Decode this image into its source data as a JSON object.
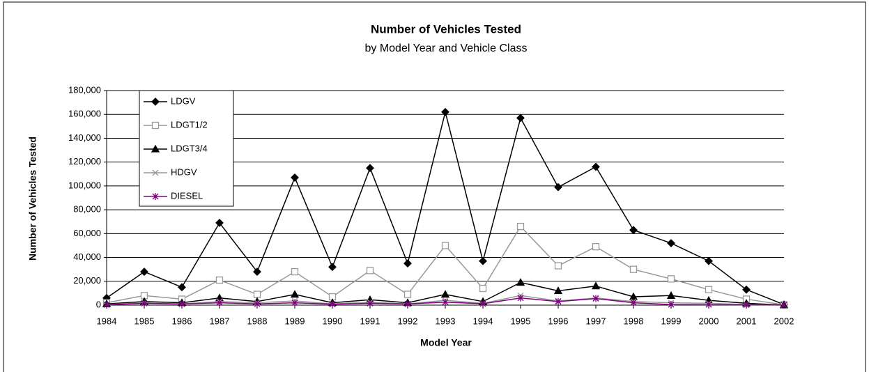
{
  "chart_data": {
    "type": "line",
    "title": "Number of Vehicles Tested",
    "subtitle": "by Model Year and Vehicle Class",
    "x_label": "Model Year",
    "y_label": "Number of Vehicles Tested",
    "categories": [
      "1984",
      "1985",
      "1986",
      "1987",
      "1988",
      "1989",
      "1990",
      "1991",
      "1992",
      "1993",
      "1994",
      "1995",
      "1996",
      "1997",
      "1998",
      "1999",
      "2000",
      "2001",
      "2002"
    ],
    "series": [
      {
        "name": "LDGV",
        "color": "#000000",
        "marker": "diamond",
        "values": [
          6000,
          28000,
          15000,
          69000,
          28000,
          107000,
          32000,
          115000,
          35000,
          162000,
          37000,
          157000,
          99000,
          116000,
          63000,
          52000,
          37000,
          13000,
          500
        ]
      },
      {
        "name": "LDGT1/2",
        "color": "#999999",
        "marker": "square",
        "values": [
          2000,
          8000,
          5000,
          21000,
          9000,
          28000,
          7000,
          29000,
          9000,
          50000,
          14000,
          66000,
          33000,
          49000,
          30000,
          22000,
          13000,
          5000,
          300
        ]
      },
      {
        "name": "LDGT3/4",
        "color": "#000000",
        "marker": "triangle",
        "values": [
          1000,
          3000,
          2000,
          6000,
          3000,
          9000,
          2000,
          4500,
          2000,
          9000,
          3000,
          19000,
          12000,
          16000,
          7000,
          8000,
          4000,
          1500,
          100
        ]
      },
      {
        "name": "HDGV",
        "color": "#999999",
        "marker": "x",
        "values": [
          500,
          2000,
          1000,
          3000,
          2000,
          3500,
          1000,
          2500,
          1000,
          4000,
          1500,
          8000,
          3500,
          6000,
          3000,
          2000,
          1500,
          500,
          100
        ]
      },
      {
        "name": "DIESEL",
        "color": "#800080",
        "marker": "star",
        "values": [
          300,
          1500,
          1000,
          2000,
          1000,
          2000,
          800,
          1500,
          1000,
          2500,
          1200,
          6000,
          3000,
          5500,
          2000,
          500,
          400,
          200,
          100
        ]
      }
    ],
    "ylim": [
      0,
      180000
    ],
    "yticks": [
      0,
      {
        "value": 20000,
        "label": "20,000"
      },
      {
        "value": 40000,
        "label": "40,000"
      },
      {
        "value": 60000,
        "label": "60,000"
      },
      {
        "value": 80000,
        "label": "80,000"
      },
      {
        "value": 100000,
        "label": "100,000"
      },
      {
        "value": 120000,
        "label": "120,000"
      },
      {
        "value": 140000,
        "label": "140,000"
      },
      {
        "value": 160000,
        "label": "160,000"
      },
      {
        "value": 180000,
        "label": "180,000"
      }
    ],
    "grid": true,
    "legend": "upper left"
  }
}
